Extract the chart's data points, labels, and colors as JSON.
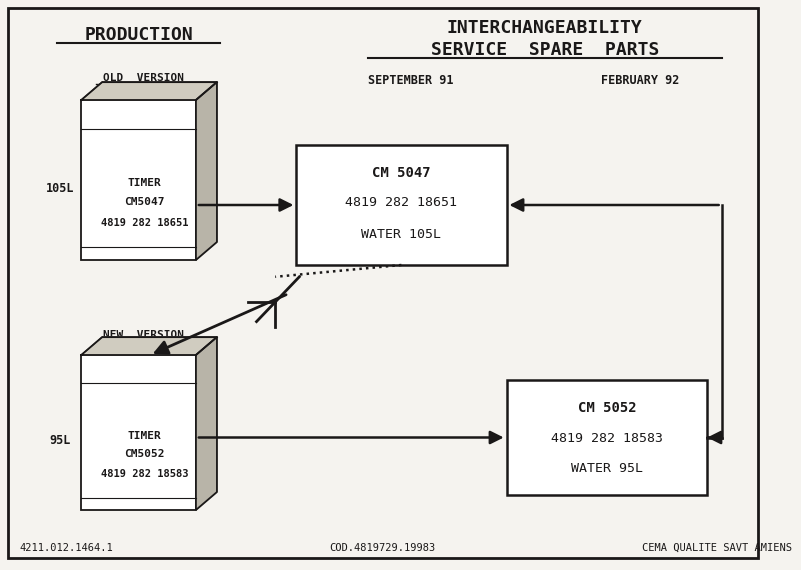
{
  "bg_color": "#f5f3ef",
  "title1": "INTERCHANGEABILITY",
  "title2": "SERVICE  SPARE  PARTS",
  "prod_title": "PRODUCTION",
  "old_version_label": "OLD  VERSION",
  "new_version_label": "NEW  VERSION",
  "sept91_label": "SEPTEMBER 91",
  "feb92_label": "FEBRUARY 92",
  "box1_line1": "CM 5047",
  "box1_line2": "4819 282 18651",
  "box1_line3": "WATER 105L",
  "box2_line1": "CM 5052",
  "box2_line2": "4819 282 18583",
  "box2_line3": "WATER 95L",
  "machine1_label": "105L",
  "machine1_text1": "TIMER",
  "machine1_text2": "CM5047",
  "machine1_text3": "4819 282 18651",
  "machine2_label": "95L",
  "machine2_text1": "TIMER",
  "machine2_text2": "CM5052",
  "machine2_text3": "4819 282 18583",
  "footer_left": "4211.012.1464.1",
  "footer_center": "COD.4819729.19983",
  "footer_right": "CEMA QUALITE SAVT AMIENS",
  "text_color": "#1a1818",
  "line_color": "#1a1818",
  "box_fill": "#ffffff",
  "machine_front_fill": "#ffffff",
  "machine_top_fill": "#d0ccc0",
  "machine_side_fill": "#b8b4a8"
}
